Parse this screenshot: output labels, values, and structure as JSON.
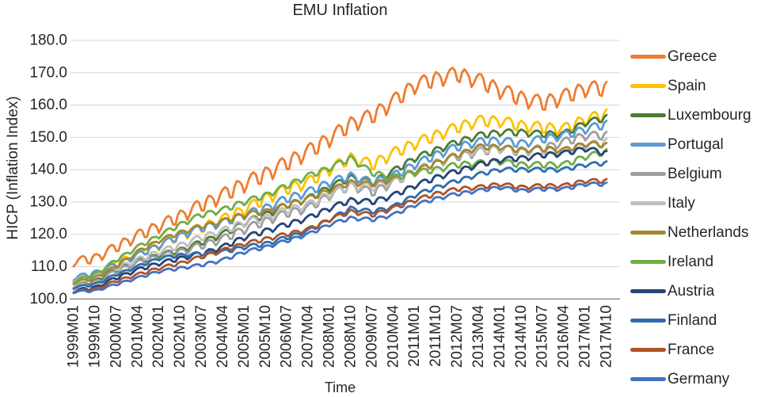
{
  "chart_data": {
    "type": "line",
    "title": "EMU Inflation",
    "xlabel": "Time",
    "ylabel": "HICP (Inflation Index)",
    "ylim": [
      100,
      180
    ],
    "ytick_step": 10,
    "ytick_decimals": 1,
    "grid": "horizontal",
    "legend_position": "right",
    "background_color": "#FFFFFF",
    "gridline_color": "#D9D9D9",
    "axis_color": "#898989",
    "text_color": "#262626",
    "x_tick_labels": [
      "1999M01",
      "1999M10",
      "2000M07",
      "2001M04",
      "2002M01",
      "2002M10",
      "2003M07",
      "2004M04",
      "2005M01",
      "2005M10",
      "2006M07",
      "2007M04",
      "2008M01",
      "2008M10",
      "2009M07",
      "2010M04",
      "2011M01",
      "2011M10",
      "2012M07",
      "2013M04",
      "2014M01",
      "2014M10",
      "2015M07",
      "2016M04",
      "2017M01",
      "2017M10"
    ],
    "months_between_ticks": 9,
    "seasonal_pattern_jan_to_dec": [
      -1.0,
      -0.45,
      0.35,
      0.8,
      0.9,
      0.5,
      -0.7,
      -0.85,
      0.4,
      0.85,
      0.6,
      0.1
    ],
    "series": [
      {
        "name": "Greece",
        "color": "#ED7D31",
        "seasonal_amplitude": 2.6,
        "values_at_ticks": [
          111.5,
          112.5,
          116.0,
          119.5,
          122.5,
          125.5,
          129.0,
          132.0,
          135.5,
          138.5,
          142.0,
          145.5,
          149.5,
          154.0,
          156.5,
          161.0,
          166.0,
          168.0,
          169.5,
          167.5,
          164.5,
          162.0,
          160.5,
          162.5,
          165.0,
          165.0
        ]
      },
      {
        "name": "Spain",
        "color": "#FFC000",
        "seasonal_amplitude": 1.9,
        "values_at_ticks": [
          106.5,
          107.5,
          111.0,
          114.0,
          116.5,
          119.5,
          122.0,
          124.5,
          127.5,
          131.0,
          134.0,
          136.0,
          140.0,
          143.5,
          141.5,
          145.0,
          148.0,
          150.5,
          153.0,
          155.0,
          155.0,
          153.5,
          153.0,
          152.5,
          155.5,
          157.0
        ]
      },
      {
        "name": "Luxembourg",
        "color": "#4E7A36",
        "seasonal_amplitude": 1.1,
        "values_at_ticks": [
          104.0,
          105.5,
          109.0,
          111.5,
          113.5,
          115.0,
          117.5,
          120.0,
          123.5,
          126.0,
          129.0,
          131.0,
          134.5,
          137.5,
          136.0,
          139.5,
          143.5,
          146.0,
          148.5,
          150.5,
          151.5,
          151.5,
          151.0,
          151.0,
          154.5,
          156.0
        ]
      },
      {
        "name": "Portugal",
        "color": "#5B9BD5",
        "seasonal_amplitude": 1.4,
        "values_at_ticks": [
          106.5,
          108.0,
          110.5,
          113.5,
          116.5,
          119.5,
          122.0,
          123.5,
          126.0,
          128.0,
          131.0,
          133.0,
          136.0,
          138.0,
          136.0,
          138.0,
          141.5,
          144.5,
          147.0,
          148.5,
          149.0,
          148.0,
          149.5,
          150.5,
          152.5,
          154.0
        ]
      },
      {
        "name": "Belgium",
        "color": "#9E9E9E",
        "seasonal_amplitude": 1.4,
        "values_at_ticks": [
          104.0,
          105.0,
          108.5,
          111.0,
          113.0,
          114.5,
          116.5,
          118.5,
          121.5,
          124.0,
          126.5,
          128.0,
          132.0,
          135.0,
          133.0,
          136.0,
          139.5,
          142.0,
          144.0,
          145.5,
          146.5,
          145.5,
          146.5,
          148.5,
          150.5,
          150.5
        ]
      },
      {
        "name": "Italy",
        "color": "#BFBFBF",
        "seasonal_amplitude": 1.3,
        "values_at_ticks": [
          106.0,
          107.0,
          109.5,
          112.0,
          114.5,
          116.5,
          119.0,
          121.0,
          123.5,
          125.0,
          127.5,
          129.0,
          132.5,
          135.0,
          134.5,
          136.5,
          139.5,
          142.0,
          144.5,
          146.0,
          146.5,
          146.0,
          146.0,
          145.5,
          147.5,
          148.5
        ]
      },
      {
        "name": "Netherlands",
        "color": "#A6872D",
        "seasonal_amplitude": 0.9,
        "values_at_ticks": [
          105.0,
          106.5,
          110.0,
          114.5,
          118.0,
          120.5,
          122.5,
          124.0,
          126.0,
          127.0,
          129.0,
          131.0,
          133.5,
          136.0,
          135.5,
          137.0,
          139.5,
          142.0,
          144.5,
          147.0,
          147.0,
          146.0,
          146.5,
          146.0,
          148.0,
          147.5
        ]
      },
      {
        "name": "Ireland",
        "color": "#70AD47",
        "seasonal_amplitude": 1.0,
        "values_at_ticks": [
          105.5,
          107.5,
          112.0,
          116.0,
          119.5,
          123.0,
          126.0,
          127.5,
          130.0,
          132.0,
          135.0,
          138.0,
          140.5,
          143.5,
          139.0,
          137.5,
          139.0,
          140.0,
          141.5,
          142.0,
          142.5,
          141.5,
          141.5,
          141.5,
          144.0,
          145.5
        ]
      },
      {
        "name": "Austria",
        "color": "#264478",
        "seasonal_amplitude": 0.9,
        "values_at_ticks": [
          102.5,
          103.5,
          106.5,
          109.0,
          111.0,
          112.5,
          114.0,
          116.0,
          119.0,
          121.0,
          123.0,
          125.0,
          128.0,
          130.5,
          130.0,
          132.0,
          135.0,
          137.5,
          139.5,
          141.5,
          143.0,
          143.5,
          144.5,
          145.0,
          146.5,
          145.0
        ]
      },
      {
        "name": "Finland",
        "color": "#2E6EAF",
        "seasonal_amplitude": 0.7,
        "values_at_ticks": [
          103.5,
          104.5,
          107.5,
          110.0,
          112.5,
          113.5,
          114.0,
          114.5,
          116.0,
          117.0,
          119.0,
          121.0,
          124.5,
          128.0,
          127.0,
          128.5,
          132.0,
          134.5,
          136.5,
          138.5,
          140.0,
          140.0,
          140.0,
          140.0,
          141.5,
          142.0
        ]
      },
      {
        "name": "France",
        "color": "#AF5229",
        "seasonal_amplitude": 0.7,
        "values_at_ticks": [
          102.2,
          103.0,
          105.5,
          107.5,
          109.5,
          111.0,
          113.0,
          115.0,
          117.0,
          118.5,
          120.0,
          121.5,
          124.5,
          127.0,
          126.0,
          128.0,
          130.5,
          132.5,
          134.0,
          134.5,
          135.5,
          134.5,
          135.0,
          135.0,
          136.5,
          136.5
        ]
      },
      {
        "name": "Germany",
        "color": "#4472C4",
        "seasonal_amplitude": 0.6,
        "values_at_ticks": [
          102.2,
          102.5,
          104.5,
          106.5,
          108.5,
          109.5,
          110.5,
          112.0,
          114.5,
          116.0,
          118.0,
          120.0,
          123.0,
          125.0,
          124.5,
          126.0,
          129.0,
          131.0,
          132.5,
          133.5,
          134.5,
          133.5,
          134.0,
          134.0,
          135.5,
          135.5
        ]
      }
    ]
  }
}
